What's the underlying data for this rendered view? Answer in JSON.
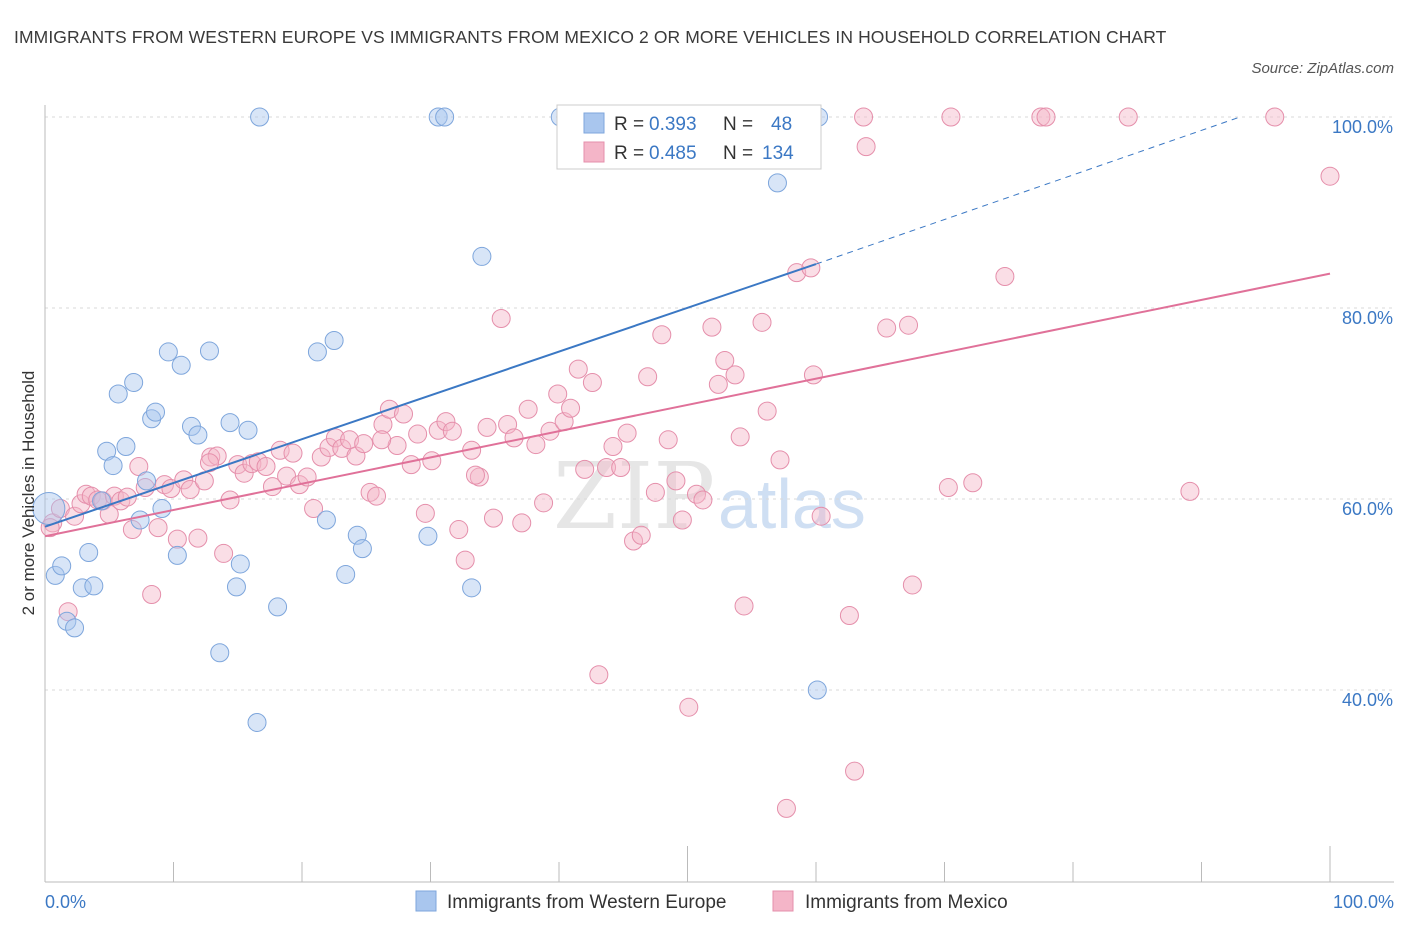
{
  "title": "IMMIGRANTS FROM WESTERN EUROPE VS IMMIGRANTS FROM MEXICO 2 OR MORE VEHICLES IN HOUSEHOLD CORRELATION CHART",
  "source": "Source: ZipAtlas.com",
  "watermark": {
    "zip": "ZIP",
    "atlas": "atlas"
  },
  "colors": {
    "blue": "#3b78c4",
    "blue_fill": "#a9c6ee",
    "pink": "#e07199",
    "pink_fill": "#f4b5c8",
    "grid": "#d9d9d9",
    "tick_text": "#3b78c4"
  },
  "chart_data": {
    "type": "scatter",
    "title": "IMMIGRANTS FROM WESTERN EUROPE VS IMMIGRANTS FROM MEXICO 2 OR MORE VEHICLES IN HOUSEHOLD CORRELATION CHART",
    "xlabel": "",
    "ylabel": "2 or more Vehicles in Household",
    "xlim": [
      0,
      100
    ],
    "ylim": [
      20,
      100
    ],
    "x_tick_labels": [
      "0.0%",
      "100.0%"
    ],
    "y_ticks": [
      40,
      60,
      80,
      100
    ],
    "y_tick_labels": [
      "40.0%",
      "60.0%",
      "80.0%",
      "100.0%"
    ],
    "grid": true,
    "legend_placement": "top-center",
    "legend": [
      {
        "r_label": "R =",
        "r_value": "0.393",
        "n_label": "N =",
        "n_value": "48"
      },
      {
        "r_label": "R =",
        "r_value": "0.485",
        "n_label": "N =",
        "n_value": "134"
      }
    ],
    "series": [
      {
        "name": "Immigrants from Western Europe",
        "color": "#3b78c4",
        "trend": {
          "x": [
            0,
            60
          ],
          "y": [
            57.1,
            84.6
          ],
          "dashed_to": [
            93,
            100
          ]
        },
        "points": [
          [
            0.3,
            59
          ],
          [
            0.8,
            52
          ],
          [
            1.3,
            53
          ],
          [
            1.7,
            47.2
          ],
          [
            2.3,
            46.5
          ],
          [
            2.9,
            50.7
          ],
          [
            3.4,
            54.4
          ],
          [
            3.8,
            50.9
          ],
          [
            4.4,
            59.8
          ],
          [
            4.8,
            65
          ],
          [
            5.3,
            63.5
          ],
          [
            5.7,
            71
          ],
          [
            6.3,
            65.5
          ],
          [
            6.9,
            72.2
          ],
          [
            7.4,
            57.8
          ],
          [
            7.9,
            61.9
          ],
          [
            8.3,
            68.4
          ],
          [
            8.6,
            69.1
          ],
          [
            9.1,
            59
          ],
          [
            9.6,
            75.4
          ],
          [
            10.3,
            54.1
          ],
          [
            10.6,
            74
          ],
          [
            11.4,
            67.6
          ],
          [
            11.9,
            66.7
          ],
          [
            12.8,
            75.5
          ],
          [
            13.6,
            43.9
          ],
          [
            14.4,
            68
          ],
          [
            14.9,
            50.8
          ],
          [
            15.2,
            53.2
          ],
          [
            15.8,
            67.2
          ],
          [
            16.5,
            36.6
          ],
          [
            16.7,
            100
          ],
          [
            18.1,
            48.7
          ],
          [
            21.2,
            75.4
          ],
          [
            21.9,
            57.8
          ],
          [
            22.5,
            76.6
          ],
          [
            23.4,
            52.1
          ],
          [
            24.3,
            56.2
          ],
          [
            24.7,
            54.8
          ],
          [
            29.8,
            56.1
          ],
          [
            30.6,
            100
          ],
          [
            31.1,
            100
          ],
          [
            33.2,
            50.7
          ],
          [
            34,
            85.4
          ],
          [
            40.1,
            100
          ],
          [
            57,
            93.1
          ],
          [
            60.1,
            40
          ],
          [
            60.2,
            100
          ]
        ]
      },
      {
        "name": "Immigrants from Mexico",
        "color": "#e07199",
        "trend": {
          "x": [
            0,
            100
          ],
          "y": [
            56.1,
            83.6
          ]
        },
        "points": [
          [
            0.6,
            57.5
          ],
          [
            1.2,
            59
          ],
          [
            1.8,
            48.2
          ],
          [
            2.3,
            58.2
          ],
          [
            2.8,
            59.5
          ],
          [
            3.2,
            60.5
          ],
          [
            3.6,
            60.3
          ],
          [
            4.1,
            59.9
          ],
          [
            4.5,
            59.8
          ],
          [
            5,
            58.4
          ],
          [
            5.4,
            60.3
          ],
          [
            5.9,
            59.8
          ],
          [
            6.4,
            60.2
          ],
          [
            6.8,
            56.8
          ],
          [
            7.3,
            63.4
          ],
          [
            7.8,
            61.2
          ],
          [
            8.3,
            50
          ],
          [
            8.8,
            57
          ],
          [
            9.3,
            61.5
          ],
          [
            9.8,
            61.1
          ],
          [
            10.3,
            55.8
          ],
          [
            10.8,
            62
          ],
          [
            11.3,
            61
          ],
          [
            11.9,
            55.9
          ],
          [
            12.4,
            61.9
          ],
          [
            12.9,
            64.4
          ],
          [
            13.4,
            64.5
          ],
          [
            13.9,
            54.3
          ],
          [
            14.4,
            59.9
          ],
          [
            15,
            63.6
          ],
          [
            15.5,
            62.7
          ],
          [
            16.1,
            63.7
          ],
          [
            16.6,
            63.9
          ],
          [
            17.2,
            63.4
          ],
          [
            17.7,
            61.3
          ],
          [
            18.3,
            65.1
          ],
          [
            18.8,
            62.4
          ],
          [
            19.3,
            64.8
          ],
          [
            19.8,
            61.5
          ],
          [
            20.4,
            62.3
          ],
          [
            20.9,
            59
          ],
          [
            21.5,
            64.4
          ],
          [
            22.1,
            65.4
          ],
          [
            22.6,
            66.4
          ],
          [
            23.1,
            65.3
          ],
          [
            23.7,
            66.2
          ],
          [
            24.2,
            64.5
          ],
          [
            24.8,
            65.8
          ],
          [
            25.3,
            60.7
          ],
          [
            25.8,
            60.3
          ],
          [
            26.3,
            67.8
          ],
          [
            26.8,
            69.4
          ],
          [
            27.4,
            65.6
          ],
          [
            27.9,
            68.9
          ],
          [
            28.5,
            63.6
          ],
          [
            29,
            66.8
          ],
          [
            29.6,
            58.5
          ],
          [
            30.1,
            64
          ],
          [
            30.6,
            67.2
          ],
          [
            31.2,
            68.1
          ],
          [
            31.7,
            67.1
          ],
          [
            32.2,
            56.8
          ],
          [
            32.7,
            53.6
          ],
          [
            33.2,
            65.1
          ],
          [
            33.8,
            62.3
          ],
          [
            34.4,
            67.5
          ],
          [
            34.9,
            58
          ],
          [
            35.5,
            78.9
          ],
          [
            36,
            67.8
          ],
          [
            36.5,
            66.4
          ],
          [
            37.1,
            57.5
          ],
          [
            37.6,
            69.4
          ],
          [
            38.2,
            65.7
          ],
          [
            38.8,
            59.6
          ],
          [
            39.3,
            67.1
          ],
          [
            39.9,
            71
          ],
          [
            40.4,
            68.1
          ],
          [
            40.9,
            69.5
          ],
          [
            41.5,
            73.6
          ],
          [
            42,
            63.1
          ],
          [
            42.6,
            72.2
          ],
          [
            43.1,
            41.6
          ],
          [
            43.7,
            63.3
          ],
          [
            44.2,
            65.5
          ],
          [
            44.8,
            63.3
          ],
          [
            45.3,
            66.9
          ],
          [
            45.8,
            55.6
          ],
          [
            46.4,
            56.2
          ],
          [
            46.9,
            72.8
          ],
          [
            47.5,
            60.7
          ],
          [
            48,
            77.2
          ],
          [
            48.5,
            66.2
          ],
          [
            49.1,
            61.9
          ],
          [
            49.6,
            57.8
          ],
          [
            50.1,
            38.2
          ],
          [
            50.7,
            60.5
          ],
          [
            51.2,
            59.9
          ],
          [
            51.9,
            78
          ],
          [
            52.4,
            72
          ],
          [
            52.9,
            74.5
          ],
          [
            53.7,
            73
          ],
          [
            54.1,
            66.5
          ],
          [
            54.4,
            48.8
          ],
          [
            55.8,
            78.5
          ],
          [
            56.2,
            69.2
          ],
          [
            57.2,
            64.1
          ],
          [
            57.7,
            27.6
          ],
          [
            58.5,
            83.7
          ],
          [
            59.6,
            84.2
          ],
          [
            59.8,
            73
          ],
          [
            60.4,
            58.2
          ],
          [
            62.6,
            47.8
          ],
          [
            63,
            31.5
          ],
          [
            63.7,
            100
          ],
          [
            63.9,
            96.9
          ],
          [
            65.5,
            77.9
          ],
          [
            67.2,
            78.2
          ],
          [
            67.5,
            51
          ],
          [
            70.3,
            61.2
          ],
          [
            70.5,
            100
          ],
          [
            72.2,
            61.7
          ],
          [
            74.7,
            83.3
          ],
          [
            77.5,
            100
          ],
          [
            77.9,
            100
          ],
          [
            84.3,
            100
          ],
          [
            89.1,
            60.8
          ],
          [
            95.7,
            100
          ],
          [
            100,
            93.8
          ],
          [
            0.4,
            57
          ],
          [
            33.5,
            62.5
          ],
          [
            44.2,
            100
          ],
          [
            58.3,
            100
          ],
          [
            12.8,
            63.8
          ],
          [
            26.2,
            66.2
          ]
        ]
      }
    ]
  }
}
